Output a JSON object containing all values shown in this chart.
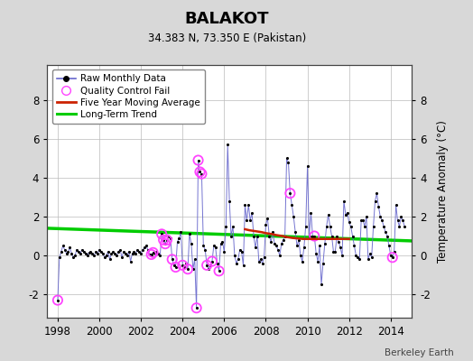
{
  "title": "BALAKOT",
  "subtitle": "34.383 N, 73.350 E (Pakistan)",
  "ylabel": "Temperature Anomaly (°C)",
  "credit": "Berkeley Earth",
  "xlim": [
    1997.5,
    2015.0
  ],
  "ylim": [
    -3.2,
    9.8
  ],
  "yticks": [
    -2,
    0,
    2,
    4,
    6,
    8
  ],
  "xticks": [
    1998,
    2000,
    2002,
    2004,
    2006,
    2008,
    2010,
    2012,
    2014
  ],
  "bg_color": "#d8d8d8",
  "plot_bg_color": "#ffffff",
  "raw_color": "#6666cc",
  "raw_marker_color": "#000000",
  "qc_color": "#ff44ff",
  "moving_avg_color": "#cc2200",
  "trend_color": "#00cc00",
  "raw_data": [
    [
      1998.0,
      -2.3
    ],
    [
      1998.083,
      -0.1
    ],
    [
      1998.167,
      0.2
    ],
    [
      1998.25,
      0.5
    ],
    [
      1998.333,
      0.3
    ],
    [
      1998.417,
      0.1
    ],
    [
      1998.5,
      0.2
    ],
    [
      1998.583,
      0.4
    ],
    [
      1998.667,
      0.1
    ],
    [
      1998.75,
      -0.1
    ],
    [
      1998.833,
      0.0
    ],
    [
      1998.917,
      0.3
    ],
    [
      1999.0,
      0.2
    ],
    [
      1999.083,
      0.1
    ],
    [
      1999.167,
      0.3
    ],
    [
      1999.25,
      0.2
    ],
    [
      1999.333,
      0.1
    ],
    [
      1999.417,
      0.0
    ],
    [
      1999.5,
      0.15
    ],
    [
      1999.583,
      0.2
    ],
    [
      1999.667,
      0.1
    ],
    [
      1999.75,
      0.0
    ],
    [
      1999.833,
      0.2
    ],
    [
      1999.917,
      0.1
    ],
    [
      2000.0,
      0.3
    ],
    [
      2000.083,
      0.2
    ],
    [
      2000.167,
      0.1
    ],
    [
      2000.25,
      -0.1
    ],
    [
      2000.333,
      0.0
    ],
    [
      2000.417,
      0.2
    ],
    [
      2000.5,
      -0.2
    ],
    [
      2000.583,
      0.1
    ],
    [
      2000.667,
      0.2
    ],
    [
      2000.75,
      0.1
    ],
    [
      2000.833,
      0.0
    ],
    [
      2000.917,
      0.2
    ],
    [
      2001.0,
      0.3
    ],
    [
      2001.083,
      -0.1
    ],
    [
      2001.167,
      0.2
    ],
    [
      2001.25,
      0.1
    ],
    [
      2001.333,
      0.0
    ],
    [
      2001.417,
      0.2
    ],
    [
      2001.5,
      -0.3
    ],
    [
      2001.583,
      0.1
    ],
    [
      2001.667,
      0.2
    ],
    [
      2001.75,
      0.1
    ],
    [
      2001.833,
      0.3
    ],
    [
      2001.917,
      0.2
    ],
    [
      2002.0,
      0.1
    ],
    [
      2002.083,
      0.3
    ],
    [
      2002.167,
      0.4
    ],
    [
      2002.25,
      0.5
    ],
    [
      2002.333,
      0.3
    ],
    [
      2002.417,
      0.05
    ],
    [
      2002.5,
      0.05
    ],
    [
      2002.583,
      0.15
    ],
    [
      2002.667,
      0.1
    ],
    [
      2002.75,
      0.2
    ],
    [
      2002.833,
      0.1
    ],
    [
      2002.917,
      0.0
    ],
    [
      2003.0,
      1.1
    ],
    [
      2003.083,
      0.8
    ],
    [
      2003.167,
      0.6
    ],
    [
      2003.25,
      0.8
    ],
    [
      2003.333,
      1.0
    ],
    [
      2003.417,
      0.9
    ],
    [
      2003.5,
      -0.2
    ],
    [
      2003.583,
      -0.5
    ],
    [
      2003.667,
      -0.6
    ],
    [
      2003.75,
      0.7
    ],
    [
      2003.833,
      0.9
    ],
    [
      2003.917,
      1.2
    ],
    [
      2004.0,
      -0.5
    ],
    [
      2004.083,
      -0.6
    ],
    [
      2004.167,
      -0.4
    ],
    [
      2004.25,
      -0.7
    ],
    [
      2004.333,
      1.1
    ],
    [
      2004.417,
      0.6
    ],
    [
      2004.5,
      -0.7
    ],
    [
      2004.583,
      -0.2
    ],
    [
      2004.667,
      -2.7
    ],
    [
      2004.75,
      4.9
    ],
    [
      2004.833,
      4.3
    ],
    [
      2004.917,
      4.2
    ],
    [
      2005.0,
      0.5
    ],
    [
      2005.083,
      0.3
    ],
    [
      2005.167,
      -0.5
    ],
    [
      2005.25,
      -0.7
    ],
    [
      2005.333,
      -0.5
    ],
    [
      2005.417,
      -0.3
    ],
    [
      2005.5,
      0.5
    ],
    [
      2005.583,
      0.4
    ],
    [
      2005.667,
      -0.4
    ],
    [
      2005.75,
      -0.8
    ],
    [
      2005.833,
      0.6
    ],
    [
      2005.917,
      0.7
    ],
    [
      2006.0,
      0.2
    ],
    [
      2006.083,
      1.5
    ],
    [
      2006.167,
      5.7
    ],
    [
      2006.25,
      2.8
    ],
    [
      2006.333,
      1.0
    ],
    [
      2006.417,
      1.5
    ],
    [
      2006.5,
      0.0
    ],
    [
      2006.583,
      -0.4
    ],
    [
      2006.667,
      -0.2
    ],
    [
      2006.75,
      0.3
    ],
    [
      2006.833,
      0.2
    ],
    [
      2006.917,
      -0.5
    ],
    [
      2007.0,
      2.6
    ],
    [
      2007.083,
      1.8
    ],
    [
      2007.167,
      2.6
    ],
    [
      2007.25,
      1.8
    ],
    [
      2007.333,
      2.2
    ],
    [
      2007.417,
      1.0
    ],
    [
      2007.5,
      0.4
    ],
    [
      2007.583,
      1.0
    ],
    [
      2007.667,
      -0.3
    ],
    [
      2007.75,
      -0.2
    ],
    [
      2007.833,
      -0.4
    ],
    [
      2007.917,
      -0.1
    ],
    [
      2008.0,
      1.6
    ],
    [
      2008.083,
      1.9
    ],
    [
      2008.167,
      1.0
    ],
    [
      2008.25,
      0.7
    ],
    [
      2008.333,
      1.2
    ],
    [
      2008.417,
      0.6
    ],
    [
      2008.5,
      0.5
    ],
    [
      2008.583,
      0.3
    ],
    [
      2008.667,
      0.0
    ],
    [
      2008.75,
      0.6
    ],
    [
      2008.833,
      0.8
    ],
    [
      2008.917,
      1.0
    ],
    [
      2009.0,
      5.0
    ],
    [
      2009.083,
      4.8
    ],
    [
      2009.167,
      3.2
    ],
    [
      2009.25,
      2.6
    ],
    [
      2009.333,
      2.0
    ],
    [
      2009.417,
      1.2
    ],
    [
      2009.5,
      0.5
    ],
    [
      2009.583,
      0.8
    ],
    [
      2009.667,
      0.0
    ],
    [
      2009.75,
      -0.3
    ],
    [
      2009.833,
      0.4
    ],
    [
      2009.917,
      1.5
    ],
    [
      2010.0,
      4.6
    ],
    [
      2010.083,
      1.0
    ],
    [
      2010.167,
      2.2
    ],
    [
      2010.25,
      1.0
    ],
    [
      2010.333,
      1.0
    ],
    [
      2010.417,
      0.1
    ],
    [
      2010.5,
      -0.3
    ],
    [
      2010.583,
      0.5
    ],
    [
      2010.667,
      -1.5
    ],
    [
      2010.75,
      -0.4
    ],
    [
      2010.833,
      0.6
    ],
    [
      2010.917,
      1.5
    ],
    [
      2011.0,
      2.1
    ],
    [
      2011.083,
      1.5
    ],
    [
      2011.167,
      1.0
    ],
    [
      2011.25,
      0.2
    ],
    [
      2011.333,
      0.2
    ],
    [
      2011.417,
      1.0
    ],
    [
      2011.5,
      0.7
    ],
    [
      2011.583,
      0.4
    ],
    [
      2011.667,
      0.0
    ],
    [
      2011.75,
      2.8
    ],
    [
      2011.833,
      2.1
    ],
    [
      2011.917,
      2.2
    ],
    [
      2012.0,
      1.7
    ],
    [
      2012.083,
      1.5
    ],
    [
      2012.167,
      1.0
    ],
    [
      2012.25,
      0.5
    ],
    [
      2012.333,
      0.0
    ],
    [
      2012.417,
      -0.1
    ],
    [
      2012.5,
      -0.2
    ],
    [
      2012.583,
      1.8
    ],
    [
      2012.667,
      1.8
    ],
    [
      2012.75,
      1.5
    ],
    [
      2012.833,
      2.0
    ],
    [
      2012.917,
      -0.2
    ],
    [
      2013.0,
      0.1
    ],
    [
      2013.083,
      -0.1
    ],
    [
      2013.167,
      1.5
    ],
    [
      2013.25,
      2.8
    ],
    [
      2013.333,
      3.2
    ],
    [
      2013.417,
      2.5
    ],
    [
      2013.5,
      2.0
    ],
    [
      2013.583,
      1.8
    ],
    [
      2013.667,
      1.5
    ],
    [
      2013.75,
      1.2
    ],
    [
      2013.833,
      1.0
    ],
    [
      2013.917,
      0.5
    ],
    [
      2014.0,
      0.0
    ],
    [
      2014.083,
      -0.1
    ],
    [
      2014.167,
      0.2
    ],
    [
      2014.25,
      2.6
    ],
    [
      2014.333,
      1.8
    ],
    [
      2014.417,
      1.5
    ],
    [
      2014.5,
      2.0
    ],
    [
      2014.583,
      1.8
    ],
    [
      2014.667,
      1.5
    ]
  ],
  "qc_fail": [
    [
      1998.0,
      -2.3
    ],
    [
      2002.5,
      0.05
    ],
    [
      2002.583,
      0.15
    ],
    [
      2003.0,
      1.1
    ],
    [
      2003.083,
      0.8
    ],
    [
      2003.167,
      0.6
    ],
    [
      2003.25,
      0.8
    ],
    [
      2003.5,
      -0.2
    ],
    [
      2003.667,
      -0.6
    ],
    [
      2004.0,
      -0.5
    ],
    [
      2004.25,
      -0.7
    ],
    [
      2004.667,
      -2.7
    ],
    [
      2004.75,
      4.9
    ],
    [
      2004.833,
      4.3
    ],
    [
      2004.917,
      4.2
    ],
    [
      2005.167,
      -0.5
    ],
    [
      2005.417,
      -0.3
    ],
    [
      2005.75,
      -0.8
    ],
    [
      2009.167,
      3.2
    ],
    [
      2010.333,
      1.0
    ],
    [
      2014.083,
      -0.1
    ]
  ],
  "moving_avg": [
    [
      2007.0,
      1.35
    ],
    [
      2007.2,
      1.3
    ],
    [
      2007.5,
      1.25
    ],
    [
      2007.8,
      1.2
    ],
    [
      2008.0,
      1.15
    ],
    [
      2008.3,
      1.1
    ],
    [
      2008.5,
      1.05
    ],
    [
      2008.8,
      1.0
    ],
    [
      2009.0,
      0.95
    ],
    [
      2009.3,
      0.9
    ],
    [
      2009.5,
      0.88
    ],
    [
      2009.8,
      0.85
    ],
    [
      2010.0,
      0.85
    ],
    [
      2010.3,
      0.85
    ],
    [
      2010.5,
      0.85
    ],
    [
      2010.8,
      0.85
    ],
    [
      2011.0,
      0.85
    ],
    [
      2011.3,
      0.85
    ],
    [
      2011.5,
      0.85
    ],
    [
      2011.8,
      0.85
    ],
    [
      2012.0,
      0.85
    ]
  ],
  "trend_x": [
    1997.5,
    2015.0
  ],
  "trend_y": [
    1.4,
    0.75
  ]
}
